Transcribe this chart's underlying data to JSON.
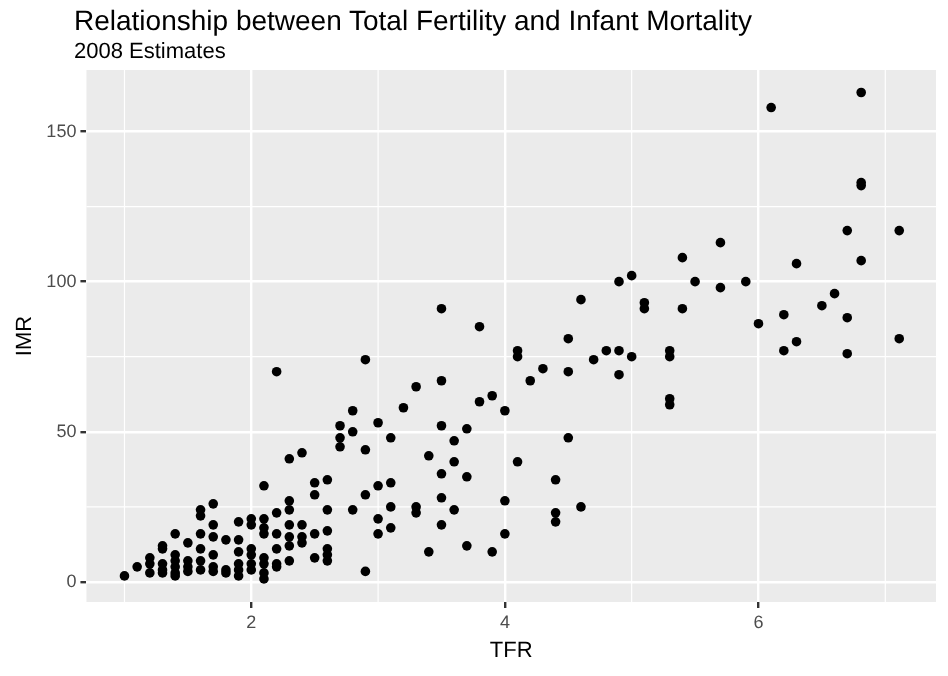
{
  "chart_data": {
    "type": "scatter",
    "title": "Relationship between Total Fertility and Infant Mortality",
    "subtitle": "2008 Estimates",
    "xlabel": "TFR",
    "ylabel": "IMR",
    "xlim": [
      0.7,
      7.4
    ],
    "ylim": [
      -6.7,
      170.5
    ],
    "xticks": [
      2,
      4,
      6
    ],
    "yticks": [
      0,
      50,
      100,
      150
    ],
    "grid": true,
    "legend": false,
    "marker": "circle",
    "series": [
      {
        "color": "#000000",
        "x": [
          6.81,
          6.1,
          6.81,
          6.81,
          6.7,
          7.11,
          6.81,
          6.3,
          5.7,
          5.4,
          5.5,
          5.9,
          5.7,
          5.4,
          6.0,
          6.6,
          6.5,
          6.2,
          6.7,
          7.11,
          6.3,
          6.2,
          6.7,
          4.9,
          5.0,
          5.1,
          5.1,
          4.6,
          4.5,
          4.7,
          4.8,
          4.9,
          5.0,
          4.9,
          5.3,
          5.3,
          5.3,
          5.3,
          4.5,
          4.3,
          4.2,
          4.1,
          4.1,
          3.8,
          3.5,
          3.9,
          3.8,
          4.0,
          4.1,
          4.4,
          4.4,
          4.4,
          4.6,
          4.5,
          4.0,
          4.0,
          3.9,
          3.7,
          3.6,
          3.7,
          3.6,
          3.6,
          3.7,
          3.5,
          3.5,
          3.5,
          3.4,
          3.5,
          3.5,
          3.4,
          3.3,
          3.2,
          3.3,
          3.3,
          3.1,
          3.1,
          3.1,
          3.1,
          3.0,
          3.0,
          3.0,
          3.0,
          2.9,
          2.9,
          2.9,
          2.9,
          2.8,
          2.8,
          2.8,
          2.7,
          2.7,
          2.7,
          2.6,
          2.6,
          2.6,
          2.6,
          2.6,
          2.6,
          2.5,
          2.5,
          2.5,
          2.5,
          2.4,
          2.4,
          2.4,
          2.4,
          2.3,
          2.3,
          2.3,
          2.3,
          2.3,
          2.3,
          2.3,
          2.2,
          2.2,
          2.2,
          2.2,
          2.2,
          2.2,
          2.1,
          2.1,
          2.1,
          2.1,
          2.1,
          2.1,
          2.1,
          2.1,
          2.0,
          2.0,
          2.0,
          2.0,
          2.0,
          2.0,
          1.9,
          1.9,
          1.9,
          1.9,
          1.9,
          1.9,
          1.8,
          1.8,
          1.8,
          1.7,
          1.7,
          1.7,
          1.7,
          1.7,
          1.7,
          1.6,
          1.6,
          1.6,
          1.6,
          1.6,
          1.6,
          1.5,
          1.5,
          1.5,
          1.5,
          1.4,
          1.4,
          1.4,
          1.4,
          1.4,
          1.4,
          1.3,
          1.3,
          1.3,
          1.3,
          1.3,
          1.2,
          1.2,
          1.2,
          1.1,
          1.0
        ],
        "values": [
          163,
          158,
          133,
          132,
          117,
          117,
          107,
          106,
          113,
          108,
          100,
          100,
          98,
          91,
          86,
          96,
          92,
          89,
          88,
          81,
          80,
          77,
          76,
          100,
          102,
          93,
          91,
          94,
          81,
          74,
          77,
          77,
          75,
          69,
          77,
          75,
          61,
          59,
          70,
          71,
          67,
          77,
          75,
          85,
          91,
          62,
          60,
          57,
          40,
          34,
          23,
          20,
          25,
          48,
          27,
          16,
          10,
          12,
          24,
          35,
          40,
          47,
          51,
          52,
          67,
          36,
          42,
          28,
          19,
          10,
          65,
          58,
          25,
          23,
          48,
          33,
          25,
          18,
          53,
          32,
          21,
          16,
          74,
          44,
          29,
          3.5,
          57,
          50,
          24,
          52,
          48,
          45,
          34,
          24,
          17,
          11,
          9,
          7,
          33,
          29,
          16,
          8,
          43,
          19,
          15,
          13,
          41,
          27,
          24,
          19,
          15,
          12,
          7,
          70,
          23,
          16,
          11,
          6,
          5,
          32,
          21,
          18,
          16,
          8,
          6,
          3,
          1,
          21,
          19,
          11,
          9,
          6,
          4,
          20,
          14,
          10,
          6,
          4,
          2,
          14,
          4,
          3,
          26,
          19,
          15,
          9,
          5,
          3.5,
          24,
          22,
          16,
          11,
          7,
          4,
          13,
          7,
          5,
          3.5,
          16,
          9,
          7,
          5,
          3,
          2,
          12,
          11,
          6,
          4,
          3,
          8,
          6,
          3,
          5,
          2
        ]
      }
    ]
  }
}
